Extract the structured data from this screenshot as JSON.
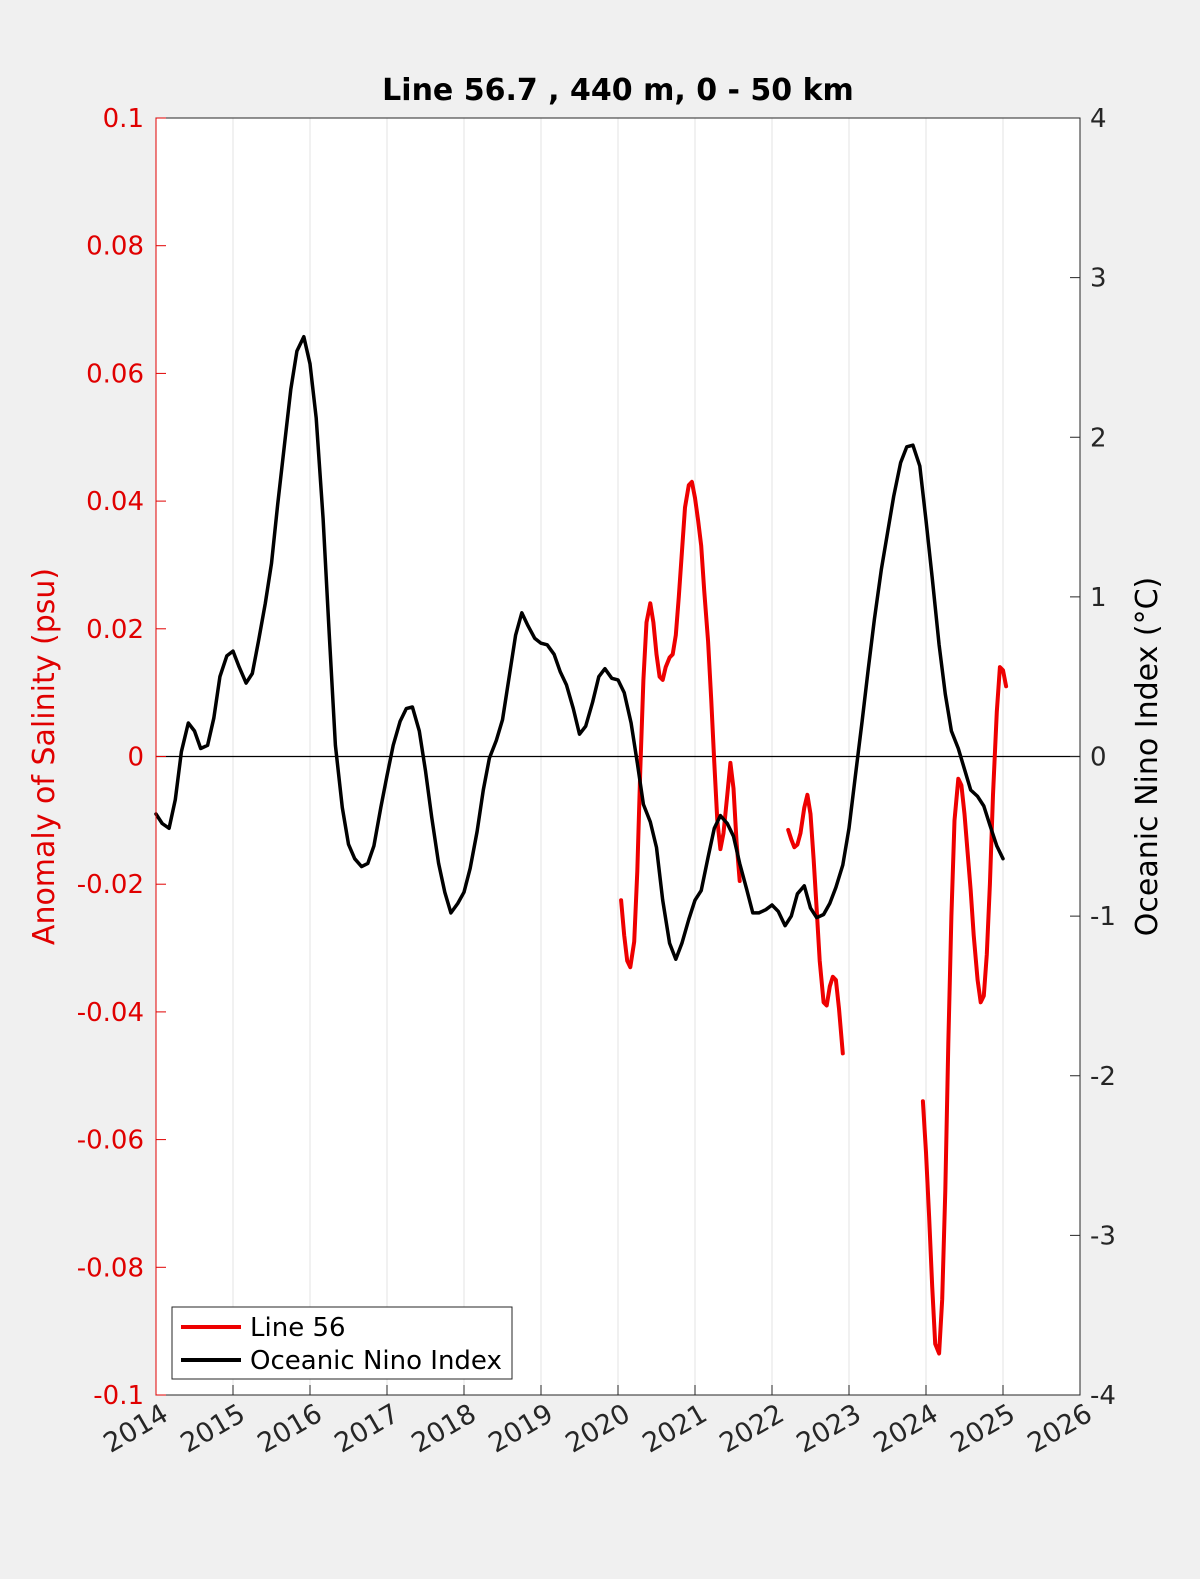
{
  "chart_data": {
    "type": "line",
    "title": "Line 56.7 , 440 m, 0 - 50 km",
    "xlabel": "",
    "ylabel_left": "Anomaly of Salinity (psu)",
    "ylabel_right": "Oceanic Nino Index (°C)",
    "xlim": [
      2014,
      2026
    ],
    "ylim_left": [
      -0.1,
      0.1
    ],
    "ylim_right": [
      -4,
      4
    ],
    "x_ticks": [
      "2014",
      "2015",
      "2016",
      "2017",
      "2018",
      "2019",
      "2020",
      "2021",
      "2022",
      "2023",
      "2024",
      "2025",
      "2026"
    ],
    "y_ticks_left": [
      "0.1",
      "0.08",
      "0.06",
      "0.04",
      "0.02",
      "0",
      "-0.02",
      "-0.04",
      "-0.06",
      "-0.08",
      "-0.1"
    ],
    "y_ticks_right": [
      "4",
      "3",
      "2",
      "1",
      "0",
      "-1",
      "-2",
      "-3",
      "-4"
    ],
    "grid": "vertical",
    "legend_position": "bottom-left",
    "colors": {
      "left_axis": "#e00000",
      "line56": "#ee0000",
      "oni": "#000000",
      "zero_line": "#000000"
    },
    "series": [
      {
        "name": "Line 56",
        "axis": "left",
        "segments": [
          [
            [
              2020.04,
              -0.0225
            ],
            [
              2020.08,
              -0.028
            ],
            [
              2020.12,
              -0.032
            ],
            [
              2020.16,
              -0.033
            ],
            [
              2020.21,
              -0.029
            ],
            [
              2020.25,
              -0.018
            ],
            [
              2020.29,
              -0.002
            ],
            [
              2020.33,
              0.012
            ],
            [
              2020.37,
              0.021
            ],
            [
              2020.42,
              0.024
            ],
            [
              2020.46,
              0.021
            ],
            [
              2020.5,
              0.016
            ],
            [
              2020.54,
              0.0125
            ],
            [
              2020.58,
              0.012
            ],
            [
              2020.62,
              0.014
            ],
            [
              2020.67,
              0.0155
            ],
            [
              2020.71,
              0.016
            ],
            [
              2020.75,
              0.019
            ],
            [
              2020.79,
              0.025
            ],
            [
              2020.83,
              0.032
            ],
            [
              2020.87,
              0.039
            ],
            [
              2020.92,
              0.0425
            ],
            [
              2020.96,
              0.043
            ],
            [
              2021.0,
              0.0405
            ],
            [
              2021.04,
              0.037
            ],
            [
              2021.08,
              0.033
            ],
            [
              2021.12,
              0.026
            ],
            [
              2021.17,
              0.018
            ],
            [
              2021.21,
              0.009
            ],
            [
              2021.25,
              -0.001
            ],
            [
              2021.29,
              -0.01
            ],
            [
              2021.33,
              -0.0145
            ],
            [
              2021.37,
              -0.012
            ],
            [
              2021.42,
              -0.006
            ],
            [
              2021.46,
              -0.001
            ],
            [
              2021.5,
              -0.005
            ],
            [
              2021.54,
              -0.0135
            ],
            [
              2021.58,
              -0.0195
            ]
          ],
          [
            [
              2022.21,
              -0.0115
            ],
            [
              2022.25,
              -0.013
            ],
            [
              2022.29,
              -0.0142
            ],
            [
              2022.33,
              -0.0138
            ],
            [
              2022.37,
              -0.012
            ],
            [
              2022.42,
              -0.008
            ],
            [
              2022.46,
              -0.006
            ],
            [
              2022.5,
              -0.009
            ],
            [
              2022.54,
              -0.016
            ],
            [
              2022.58,
              -0.024
            ],
            [
              2022.62,
              -0.032
            ],
            [
              2022.67,
              -0.0385
            ],
            [
              2022.71,
              -0.039
            ],
            [
              2022.75,
              -0.036
            ],
            [
              2022.79,
              -0.0345
            ],
            [
              2022.83,
              -0.035
            ],
            [
              2022.87,
              -0.0395
            ],
            [
              2022.92,
              -0.0465
            ]
          ],
          [
            [
              2023.96,
              -0.054
            ],
            [
              2024.0,
              -0.062
            ],
            [
              2024.04,
              -0.072
            ],
            [
              2024.08,
              -0.083
            ],
            [
              2024.12,
              -0.092
            ],
            [
              2024.17,
              -0.0935
            ],
            [
              2024.21,
              -0.085
            ],
            [
              2024.25,
              -0.068
            ],
            [
              2024.29,
              -0.045
            ],
            [
              2024.33,
              -0.025
            ],
            [
              2024.37,
              -0.01
            ],
            [
              2024.42,
              -0.0035
            ],
            [
              2024.46,
              -0.0045
            ],
            [
              2024.5,
              -0.009
            ],
            [
              2024.54,
              -0.015
            ],
            [
              2024.58,
              -0.021
            ],
            [
              2024.62,
              -0.028
            ],
            [
              2024.67,
              -0.035
            ],
            [
              2024.71,
              -0.0385
            ],
            [
              2024.75,
              -0.0375
            ],
            [
              2024.79,
              -0.031
            ],
            [
              2024.83,
              -0.02
            ],
            [
              2024.87,
              -0.006
            ],
            [
              2024.92,
              0.007
            ],
            [
              2024.96,
              0.014
            ],
            [
              2025.0,
              0.0135
            ],
            [
              2025.04,
              0.011
            ]
          ]
        ]
      },
      {
        "name": "Oceanic Nino Index",
        "axis": "right",
        "x": [
          2014.0,
          2014.08,
          2014.17,
          2014.25,
          2014.33,
          2014.42,
          2014.5,
          2014.58,
          2014.67,
          2014.75,
          2014.83,
          2014.92,
          2015.0,
          2015.08,
          2015.17,
          2015.25,
          2015.33,
          2015.42,
          2015.5,
          2015.58,
          2015.67,
          2015.75,
          2015.83,
          2015.92,
          2016.0,
          2016.08,
          2016.17,
          2016.25,
          2016.33,
          2016.42,
          2016.5,
          2016.58,
          2016.67,
          2016.75,
          2016.83,
          2016.92,
          2017.0,
          2017.08,
          2017.17,
          2017.25,
          2017.33,
          2017.42,
          2017.5,
          2017.58,
          2017.67,
          2017.75,
          2017.83,
          2017.92,
          2018.0,
          2018.08,
          2018.17,
          2018.25,
          2018.33,
          2018.42,
          2018.5,
          2018.58,
          2018.67,
          2018.75,
          2018.83,
          2018.92,
          2019.0,
          2019.08,
          2019.17,
          2019.25,
          2019.33,
          2019.42,
          2019.5,
          2019.58,
          2019.67,
          2019.75,
          2019.83,
          2019.92,
          2020.0,
          2020.08,
          2020.17,
          2020.25,
          2020.33,
          2020.42,
          2020.5,
          2020.58,
          2020.67,
          2020.75,
          2020.83,
          2020.92,
          2021.0,
          2021.08,
          2021.17,
          2021.25,
          2021.33,
          2021.42,
          2021.5,
          2021.58,
          2021.67,
          2021.75,
          2021.83,
          2021.92,
          2022.0,
          2022.08,
          2022.17,
          2022.25,
          2022.33,
          2022.42,
          2022.5,
          2022.58,
          2022.67,
          2022.75,
          2022.83,
          2022.92,
          2023.0,
          2023.08,
          2023.17,
          2023.25,
          2023.33,
          2023.42,
          2023.5,
          2023.58,
          2023.67,
          2023.75,
          2023.83,
          2023.92,
          2024.0,
          2024.08,
          2024.17,
          2024.25,
          2024.33,
          2024.42,
          2024.5,
          2024.58,
          2024.67,
          2024.75,
          2024.83,
          2024.92,
          2025.0
        ],
        "values": [
          -0.36,
          -0.42,
          -0.45,
          -0.27,
          0.03,
          0.21,
          0.16,
          0.05,
          0.07,
          0.24,
          0.5,
          0.63,
          0.66,
          0.56,
          0.46,
          0.52,
          0.72,
          0.96,
          1.21,
          1.58,
          1.96,
          2.3,
          2.54,
          2.63,
          2.46,
          2.12,
          1.49,
          0.76,
          0.07,
          -0.32,
          -0.55,
          -0.64,
          -0.69,
          -0.67,
          -0.56,
          -0.32,
          -0.12,
          0.07,
          0.22,
          0.3,
          0.31,
          0.16,
          -0.09,
          -0.38,
          -0.67,
          -0.85,
          -0.98,
          -0.92,
          -0.85,
          -0.7,
          -0.47,
          -0.21,
          -0.01,
          0.1,
          0.23,
          0.48,
          0.76,
          0.9,
          0.82,
          0.74,
          0.71,
          0.7,
          0.64,
          0.53,
          0.45,
          0.3,
          0.14,
          0.19,
          0.34,
          0.5,
          0.55,
          0.49,
          0.48,
          0.4,
          0.21,
          -0.04,
          -0.3,
          -0.41,
          -0.57,
          -0.9,
          -1.17,
          -1.27,
          -1.17,
          -1.02,
          -0.9,
          -0.84,
          -0.63,
          -0.45,
          -0.37,
          -0.42,
          -0.5,
          -0.67,
          -0.83,
          -0.98,
          -0.98,
          -0.96,
          -0.93,
          -0.97,
          -1.06,
          -1.0,
          -0.86,
          -0.81,
          -0.95,
          -1.01,
          -0.99,
          -0.92,
          -0.82,
          -0.68,
          -0.45,
          -0.13,
          0.22,
          0.55,
          0.86,
          1.17,
          1.4,
          1.63,
          1.84,
          1.94,
          1.95,
          1.82,
          1.48,
          1.12,
          0.7,
          0.39,
          0.16,
          0.05,
          -0.08,
          -0.21,
          -0.25,
          -0.31,
          -0.43,
          -0.56,
          -0.64
        ]
      }
    ]
  },
  "legend": {
    "items": [
      {
        "label": "Line 56",
        "color": "#ee0000"
      },
      {
        "label": "Oceanic Nino Index",
        "color": "#000000"
      }
    ]
  }
}
